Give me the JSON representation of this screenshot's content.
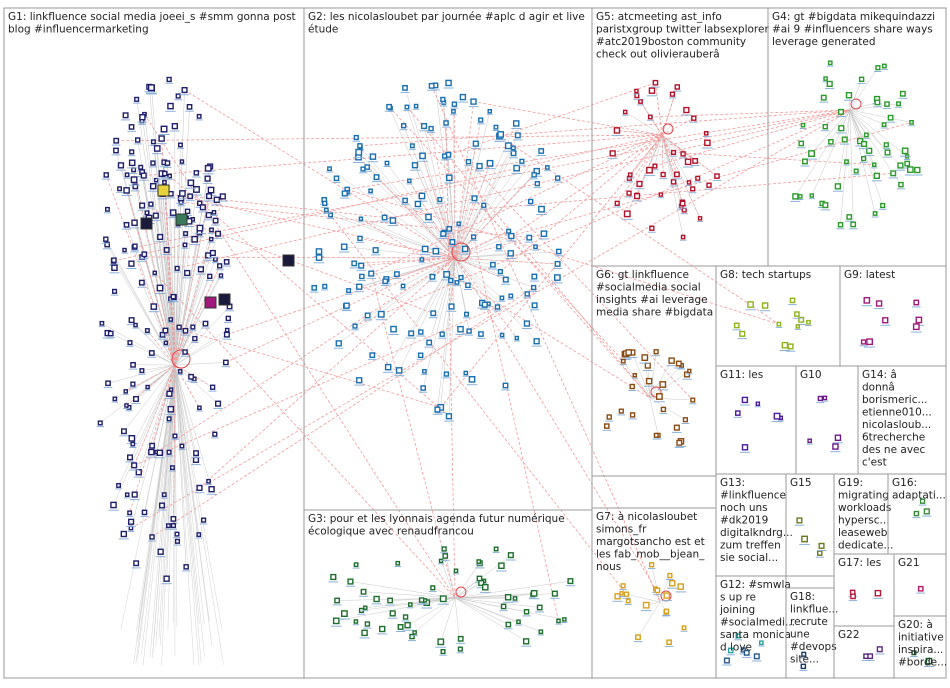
{
  "groups": [
    {
      "id": "G1",
      "label_lines": [
        "G1: linkfluence social media joeei_s #smm gonna post",
        "blog #influencermarketing"
      ],
      "color": "#1f1f6b"
    },
    {
      "id": "G2",
      "label_lines": [
        "G2: les nicolasloubet par journée #aplc d agir et live",
        "étude"
      ],
      "color": "#1a6fb0"
    },
    {
      "id": "G5",
      "label_lines": [
        "G5: atcmeeting ast_info",
        "paristxgroup twitter labsexplorer",
        "#atc2019boston community",
        "check out olivierauberâ"
      ],
      "color": "#b3122a"
    },
    {
      "id": "G4",
      "label_lines": [
        "G4: gt #bigdata mikequindazzi",
        "#ai 9 #influencers share ways",
        "leverage generated"
      ],
      "color": "#2a9a2a"
    },
    {
      "id": "G6",
      "label_lines": [
        "G6: gt linkfluence",
        "#socialmedia social",
        "insights #ai leverage",
        "media share #bigdata"
      ],
      "color": "#8a4b12"
    },
    {
      "id": "G8",
      "label_lines": [
        "G8: tech startups"
      ],
      "color": "#8fb21a"
    },
    {
      "id": "G9",
      "label_lines": [
        "G9: latest"
      ],
      "color": "#a0197a"
    },
    {
      "id": "G11",
      "label_lines": [
        "G11: les"
      ],
      "color": "#4b1aa0"
    },
    {
      "id": "G10",
      "label_lines": [
        "G10"
      ],
      "color": "#6a1a8a"
    },
    {
      "id": "G14",
      "label_lines": [
        "G14: â",
        "donnâ",
        "borismeric...",
        "etienne010...",
        "nicolasloub...",
        "6trecherche",
        "des ne avec",
        "c'est"
      ],
      "color": "#6fa8d6"
    },
    {
      "id": "G3",
      "label_lines": [
        "G3: pour et les lyonnais agenda futur numérique",
        "écologique avec renaudfrancou"
      ],
      "color": "#1e6e2e"
    },
    {
      "id": "G7",
      "label_lines": [
        "G7: à nicolasloubet",
        "simons_fr",
        "margotsancho est et",
        "les fab_mob__bjean_",
        "nous"
      ],
      "color": "#d9a01a"
    },
    {
      "id": "G13",
      "label_lines": [
        "G13:",
        "#linkfluence",
        "noch uns",
        "#dk2019",
        "digitalkndrg...",
        "zum treffen",
        "sie social..."
      ],
      "color": "#2aa0a0"
    },
    {
      "id": "G15",
      "label_lines": [
        "G15"
      ],
      "color": "#6a7a1a"
    },
    {
      "id": "G19",
      "label_lines": [
        "G19:",
        "migrating",
        "workloads",
        "hypersc...",
        "leaseweb",
        "dedicate..."
      ],
      "color": "#1a4a7a"
    },
    {
      "id": "G16",
      "label_lines": [
        "G16:",
        "adaptati..."
      ],
      "color": "#3a8a3a"
    },
    {
      "id": "G12",
      "label_lines": [
        "G12: #smwla",
        "s up re",
        "joining",
        "#socialmedi...",
        "santa monica",
        "d love"
      ],
      "color": "#2a5a8a"
    },
    {
      "id": "G18",
      "label_lines": [
        "G18:",
        "linkflue...",
        "recrute",
        "une",
        "#devops",
        "site..."
      ],
      "color": "#1a3a6a"
    },
    {
      "id": "G17",
      "label_lines": [
        "G17: les"
      ],
      "color": "#b31a3a"
    },
    {
      "id": "G21",
      "label_lines": [
        "G21"
      ],
      "color": "#b31a6a"
    },
    {
      "id": "G22",
      "label_lines": [
        "G22"
      ],
      "color": "#5a2a7a"
    },
    {
      "id": "G20",
      "label_lines": [
        "G20: à",
        "initiative",
        "inspira...",
        "#borde..."
      ],
      "color": "#1a5a2a"
    }
  ],
  "edge_colors": {
    "inter": "#f29a9a",
    "intra": "#c8c8c8",
    "self_loop": "#e0474c"
  }
}
